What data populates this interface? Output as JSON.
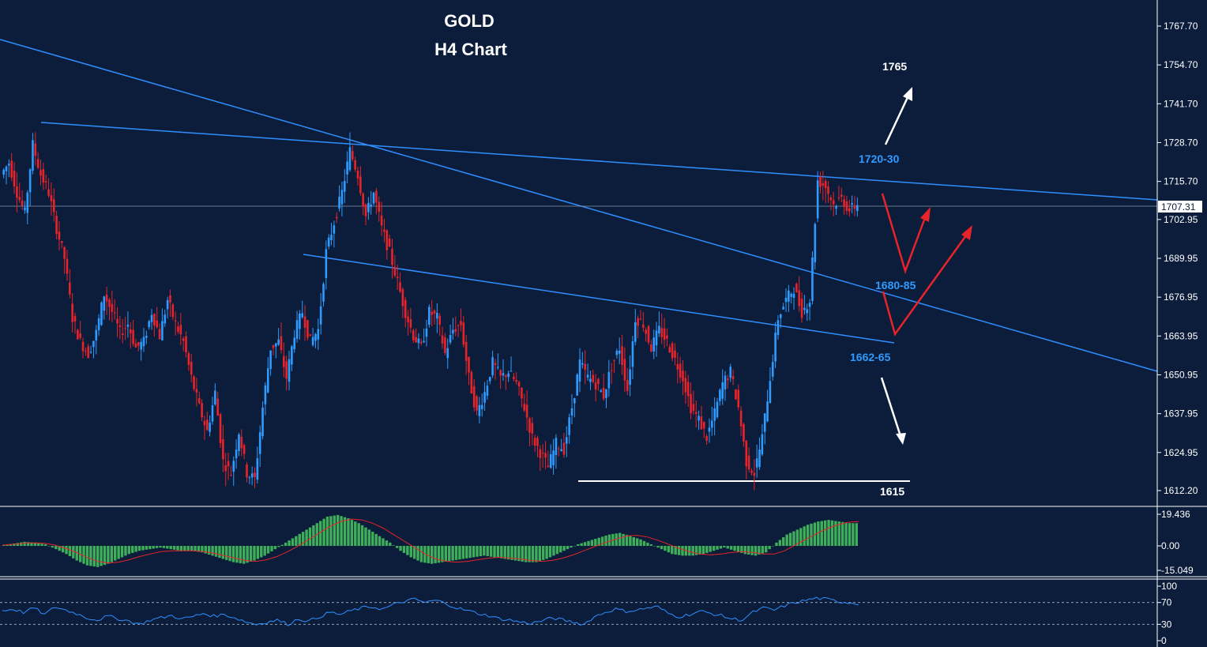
{
  "chart_data": {
    "type": "candlestick",
    "title": "GOLD",
    "subtitle": "H4 Chart",
    "current_price": "1707.31",
    "price_axis": {
      "ylim": [
        1608,
        1772
      ],
      "ticks": [
        "1767.70",
        "1754.70",
        "1741.70",
        "1728.70",
        "1715.70",
        "1702.95",
        "1689.95",
        "1676.95",
        "1663.95",
        "1650.95",
        "1637.95",
        "1624.95",
        "1612.20"
      ]
    },
    "annotations": {
      "target_up": "1765",
      "resistance": "1720-30",
      "pivot": "1680-85",
      "support": "1662-65",
      "target_down": "1615"
    },
    "price_path": [
      1718,
      1722,
      1712,
      1705,
      1728,
      1718,
      1712,
      1700,
      1690,
      1670,
      1662,
      1658,
      1665,
      1678,
      1672,
      1665,
      1668,
      1660,
      1662,
      1672,
      1664,
      1676,
      1668,
      1662,
      1650,
      1640,
      1632,
      1645,
      1622,
      1618,
      1632,
      1618,
      1616,
      1640,
      1660,
      1662,
      1650,
      1665,
      1672,
      1662,
      1666,
      1692,
      1702,
      1712,
      1726,
      1718,
      1704,
      1712,
      1700,
      1692,
      1682,
      1672,
      1664,
      1660,
      1672,
      1670,
      1658,
      1666,
      1668,
      1650,
      1638,
      1645,
      1655,
      1650,
      1652,
      1648,
      1640,
      1630,
      1625,
      1620,
      1628,
      1626,
      1640,
      1655,
      1650,
      1648,
      1644,
      1654,
      1660,
      1646,
      1670,
      1668,
      1660,
      1666,
      1662,
      1656,
      1650,
      1640,
      1636,
      1630,
      1638,
      1648,
      1652,
      1640,
      1622,
      1618,
      1630,
      1650,
      1670,
      1676,
      1680,
      1672,
      1676,
      1716,
      1714,
      1708,
      1710,
      1706,
      1708
    ],
    "macd": {
      "ylim": [
        -17,
        24
      ],
      "ticks": [
        "19.436",
        "0.00",
        "-15.049"
      ],
      "histogram": [
        0.5,
        1.5,
        2.5,
        2,
        1,
        -2,
        -5,
        -9,
        -12,
        -13,
        -11,
        -8,
        -5,
        -3,
        -2,
        -1,
        -2,
        -3,
        -3,
        -4,
        -6,
        -8,
        -10,
        -11,
        -9,
        -6,
        -2,
        2,
        6,
        10,
        14,
        18,
        19,
        17,
        14,
        10,
        6,
        2,
        -3,
        -7,
        -10,
        -11,
        -10,
        -9,
        -8,
        -7,
        -6,
        -7,
        -8,
        -9,
        -10,
        -10,
        -8,
        -5,
        -2,
        1,
        3,
        5,
        7,
        8,
        6,
        4,
        1,
        -2,
        -5,
        -6,
        -6,
        -5,
        -3,
        -1,
        -3,
        -5,
        -6,
        -4,
        2,
        7,
        10,
        13,
        15,
        16,
        15,
        14
      ],
      "signal": [
        0.5,
        1,
        1.6,
        1.9,
        1.6,
        0.5,
        -1.5,
        -4,
        -7,
        -9.5,
        -10.5,
        -10,
        -8.5,
        -6.5,
        -5,
        -3.5,
        -3,
        -3,
        -3,
        -3.5,
        -4.5,
        -6,
        -7.5,
        -9,
        -9.5,
        -8.5,
        -6.5,
        -3.5,
        0,
        4,
        8,
        12,
        15,
        16.5,
        16,
        14,
        11,
        7,
        3,
        -1,
        -5,
        -8,
        -9.5,
        -10,
        -9.5,
        -8.5,
        -7.5,
        -7,
        -7.5,
        -8,
        -9,
        -9.5,
        -9,
        -7.5,
        -5.5,
        -3,
        -0.5,
        2,
        4,
        6,
        6.5,
        5.5,
        3.5,
        1,
        -1.5,
        -3.5,
        -5,
        -5.5,
        -5,
        -4,
        -3.5,
        -4,
        -5,
        -5,
        -3,
        0.5,
        4,
        7.5,
        10.5,
        13,
        14.5,
        15
      ]
    },
    "rsi": {
      "ylim": [
        0,
        100
      ],
      "ticks": [
        "100",
        "70",
        "30",
        "0"
      ],
      "levels": [
        70,
        30
      ],
      "values": [
        55,
        58,
        52,
        60,
        48,
        62,
        56,
        50,
        42,
        38,
        45,
        40,
        36,
        30,
        38,
        42,
        46,
        40,
        44,
        50,
        45,
        48,
        42,
        35,
        30,
        34,
        38,
        30,
        40,
        36,
        44,
        52,
        48,
        55,
        60,
        62,
        58,
        66,
        72,
        76,
        70,
        74,
        68,
        60,
        55,
        50,
        46,
        40,
        38,
        34,
        32,
        36,
        42,
        38,
        34,
        30,
        44,
        52,
        58,
        54,
        56,
        60,
        62,
        50,
        44,
        48,
        54,
        50,
        46,
        40,
        38,
        52,
        60,
        56,
        64,
        70,
        74,
        78,
        76,
        72,
        70,
        68
      ]
    }
  }
}
